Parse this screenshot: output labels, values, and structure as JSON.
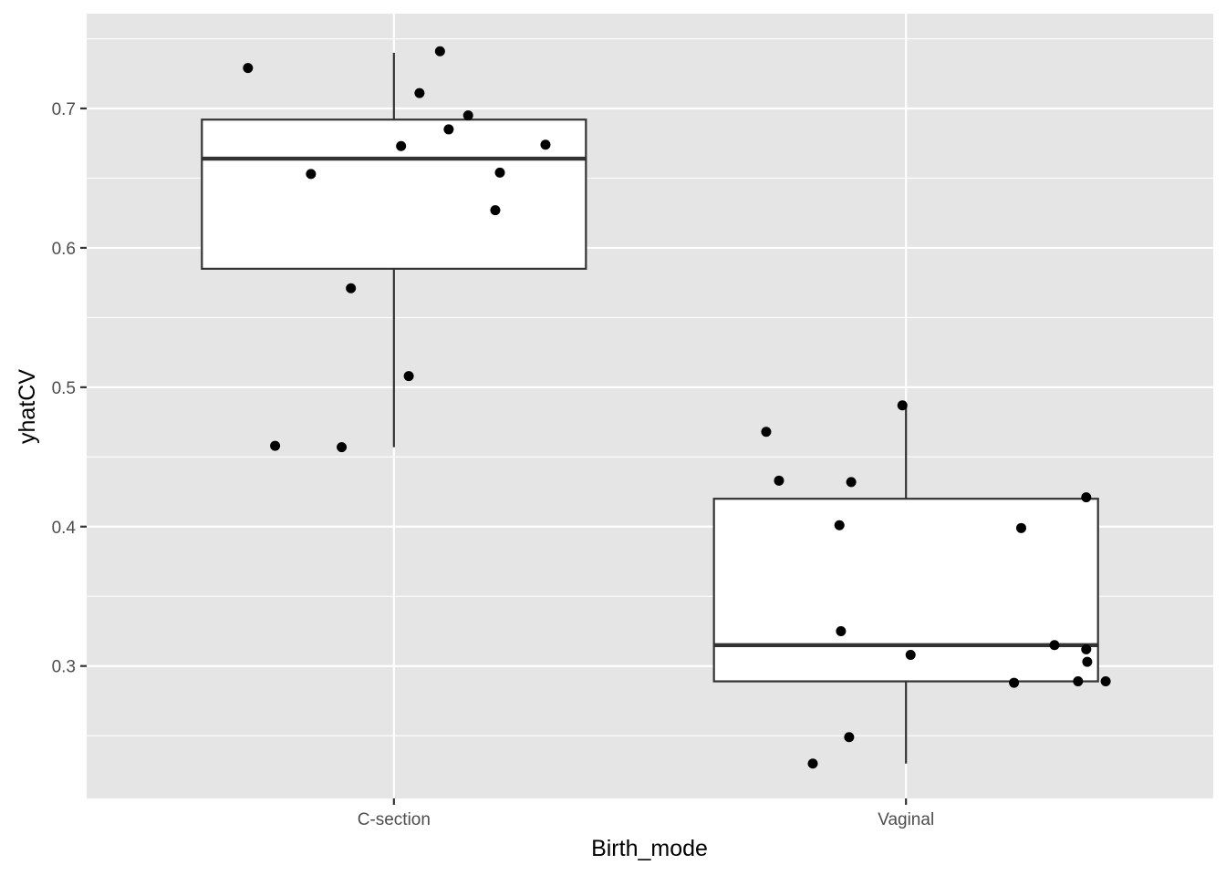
{
  "chart_data": {
    "type": "box",
    "xlabel": "Birth_mode",
    "ylabel": "yhatCV",
    "ylim": [
      0.205,
      0.768
    ],
    "y_ticks": [
      0.3,
      0.4,
      0.5,
      0.6,
      0.7
    ],
    "y_tick_labels": [
      "0.3",
      "0.4",
      "0.5",
      "0.6",
      "0.7"
    ],
    "categories": [
      "C-section",
      "Vaginal"
    ],
    "grid": true,
    "background_color": "#e5e5e5",
    "boxes": [
      {
        "category": "C-section",
        "whisker_low": 0.457,
        "q1": 0.585,
        "median": 0.664,
        "q3": 0.692,
        "whisker_high": 0.74
      },
      {
        "category": "Vaginal",
        "whisker_low": 0.23,
        "q1": 0.289,
        "median": 0.315,
        "q3": 0.42,
        "whisker_high": 0.487
      }
    ],
    "points": [
      {
        "category": "C-section",
        "jitter": -0.285,
        "y": 0.729
      },
      {
        "category": "C-section",
        "jitter": 0.09,
        "y": 0.741
      },
      {
        "category": "C-section",
        "jitter": 0.05,
        "y": 0.711
      },
      {
        "category": "C-section",
        "jitter": 0.145,
        "y": 0.695
      },
      {
        "category": "C-section",
        "jitter": 0.107,
        "y": 0.685
      },
      {
        "category": "C-section",
        "jitter": 0.296,
        "y": 0.674
      },
      {
        "category": "C-section",
        "jitter": 0.014,
        "y": 0.673
      },
      {
        "category": "C-section",
        "jitter": 0.207,
        "y": 0.654
      },
      {
        "category": "C-section",
        "jitter": -0.162,
        "y": 0.653
      },
      {
        "category": "C-section",
        "jitter": 0.198,
        "y": 0.627
      },
      {
        "category": "C-section",
        "jitter": -0.084,
        "y": 0.571
      },
      {
        "category": "C-section",
        "jitter": 0.029,
        "y": 0.508
      },
      {
        "category": "C-section",
        "jitter": -0.232,
        "y": 0.458
      },
      {
        "category": "C-section",
        "jitter": -0.102,
        "y": 0.457
      },
      {
        "category": "Vaginal",
        "jitter": -0.007,
        "y": 0.487
      },
      {
        "category": "Vaginal",
        "jitter": -0.273,
        "y": 0.468
      },
      {
        "category": "Vaginal",
        "jitter": -0.248,
        "y": 0.433
      },
      {
        "category": "Vaginal",
        "jitter": -0.107,
        "y": 0.432
      },
      {
        "category": "Vaginal",
        "jitter": 0.352,
        "y": 0.421
      },
      {
        "category": "Vaginal",
        "jitter": -0.13,
        "y": 0.401
      },
      {
        "category": "Vaginal",
        "jitter": 0.225,
        "y": 0.399
      },
      {
        "category": "Vaginal",
        "jitter": -0.127,
        "y": 0.325
      },
      {
        "category": "Vaginal",
        "jitter": 0.29,
        "y": 0.315
      },
      {
        "category": "Vaginal",
        "jitter": 0.352,
        "y": 0.312
      },
      {
        "category": "Vaginal",
        "jitter": 0.009,
        "y": 0.308
      },
      {
        "category": "Vaginal",
        "jitter": 0.354,
        "y": 0.303
      },
      {
        "category": "Vaginal",
        "jitter": 0.336,
        "y": 0.289
      },
      {
        "category": "Vaginal",
        "jitter": 0.39,
        "y": 0.289
      },
      {
        "category": "Vaginal",
        "jitter": 0.211,
        "y": 0.288
      },
      {
        "category": "Vaginal",
        "jitter": -0.111,
        "y": 0.249
      },
      {
        "category": "Vaginal",
        "jitter": -0.182,
        "y": 0.23
      }
    ]
  }
}
